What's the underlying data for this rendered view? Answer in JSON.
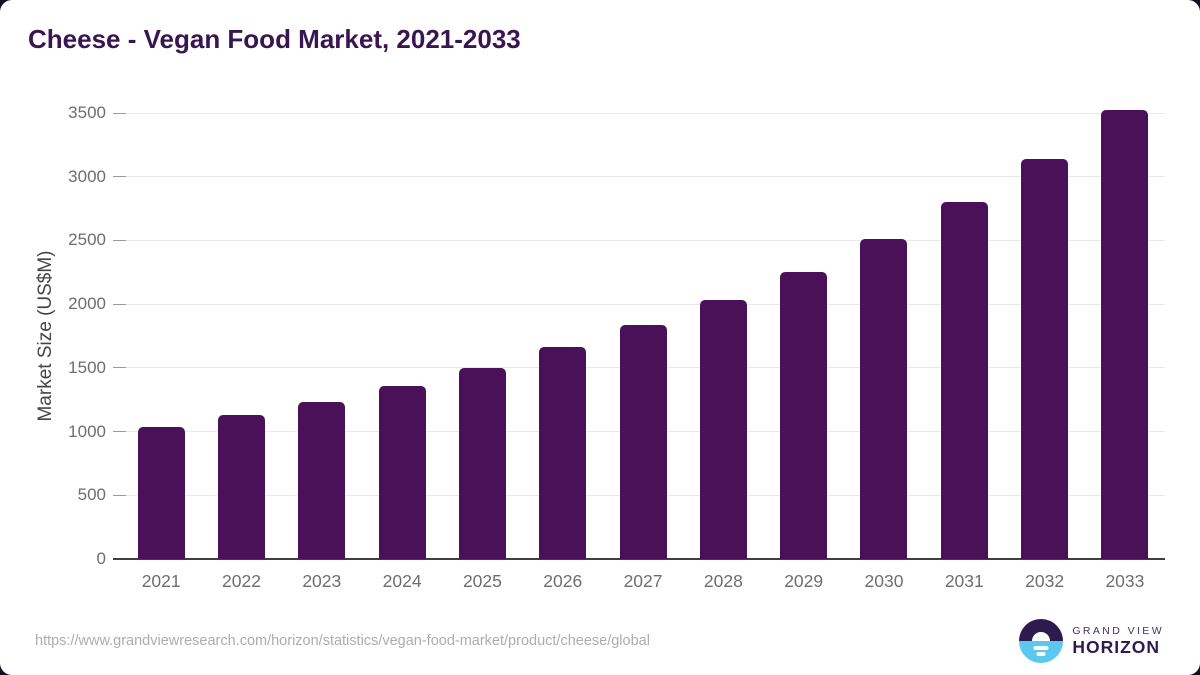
{
  "page": {
    "background_color": "#150d23",
    "card_color": "#ffffff"
  },
  "chart_data": {
    "type": "bar",
    "title": "Cheese - Vegan Food Market, 2021-2033",
    "categories": [
      "2021",
      "2022",
      "2023",
      "2024",
      "2025",
      "2026",
      "2027",
      "2028",
      "2029",
      "2030",
      "2031",
      "2032",
      "2033"
    ],
    "values": [
      1035,
      1130,
      1235,
      1360,
      1500,
      1660,
      1835,
      2035,
      2255,
      2510,
      2805,
      3140,
      3520
    ],
    "xlabel": "",
    "ylabel": "Market Size (US$M)",
    "ylim": [
      0,
      3500
    ],
    "yticks": [
      0,
      500,
      1000,
      1500,
      2000,
      2500,
      3000,
      3500
    ],
    "grid": true,
    "legend": "none",
    "bar_color": "#4a1158",
    "gridline_color": "#e9e9e9",
    "axis_line_color": "#3f3f3f",
    "tick_label_color": "#6e6e6e",
    "title_color": "#3a1650"
  },
  "footer": {
    "source_url": "https://www.grandviewresearch.com/horizon/statistics/vegan-food-market/product/cheese/global",
    "logo": {
      "line1": "GRAND VIEW",
      "line2": "HORIZON",
      "mark_top_color": "#2d1b4e",
      "mark_bottom_color": "#5bc9ef"
    }
  }
}
